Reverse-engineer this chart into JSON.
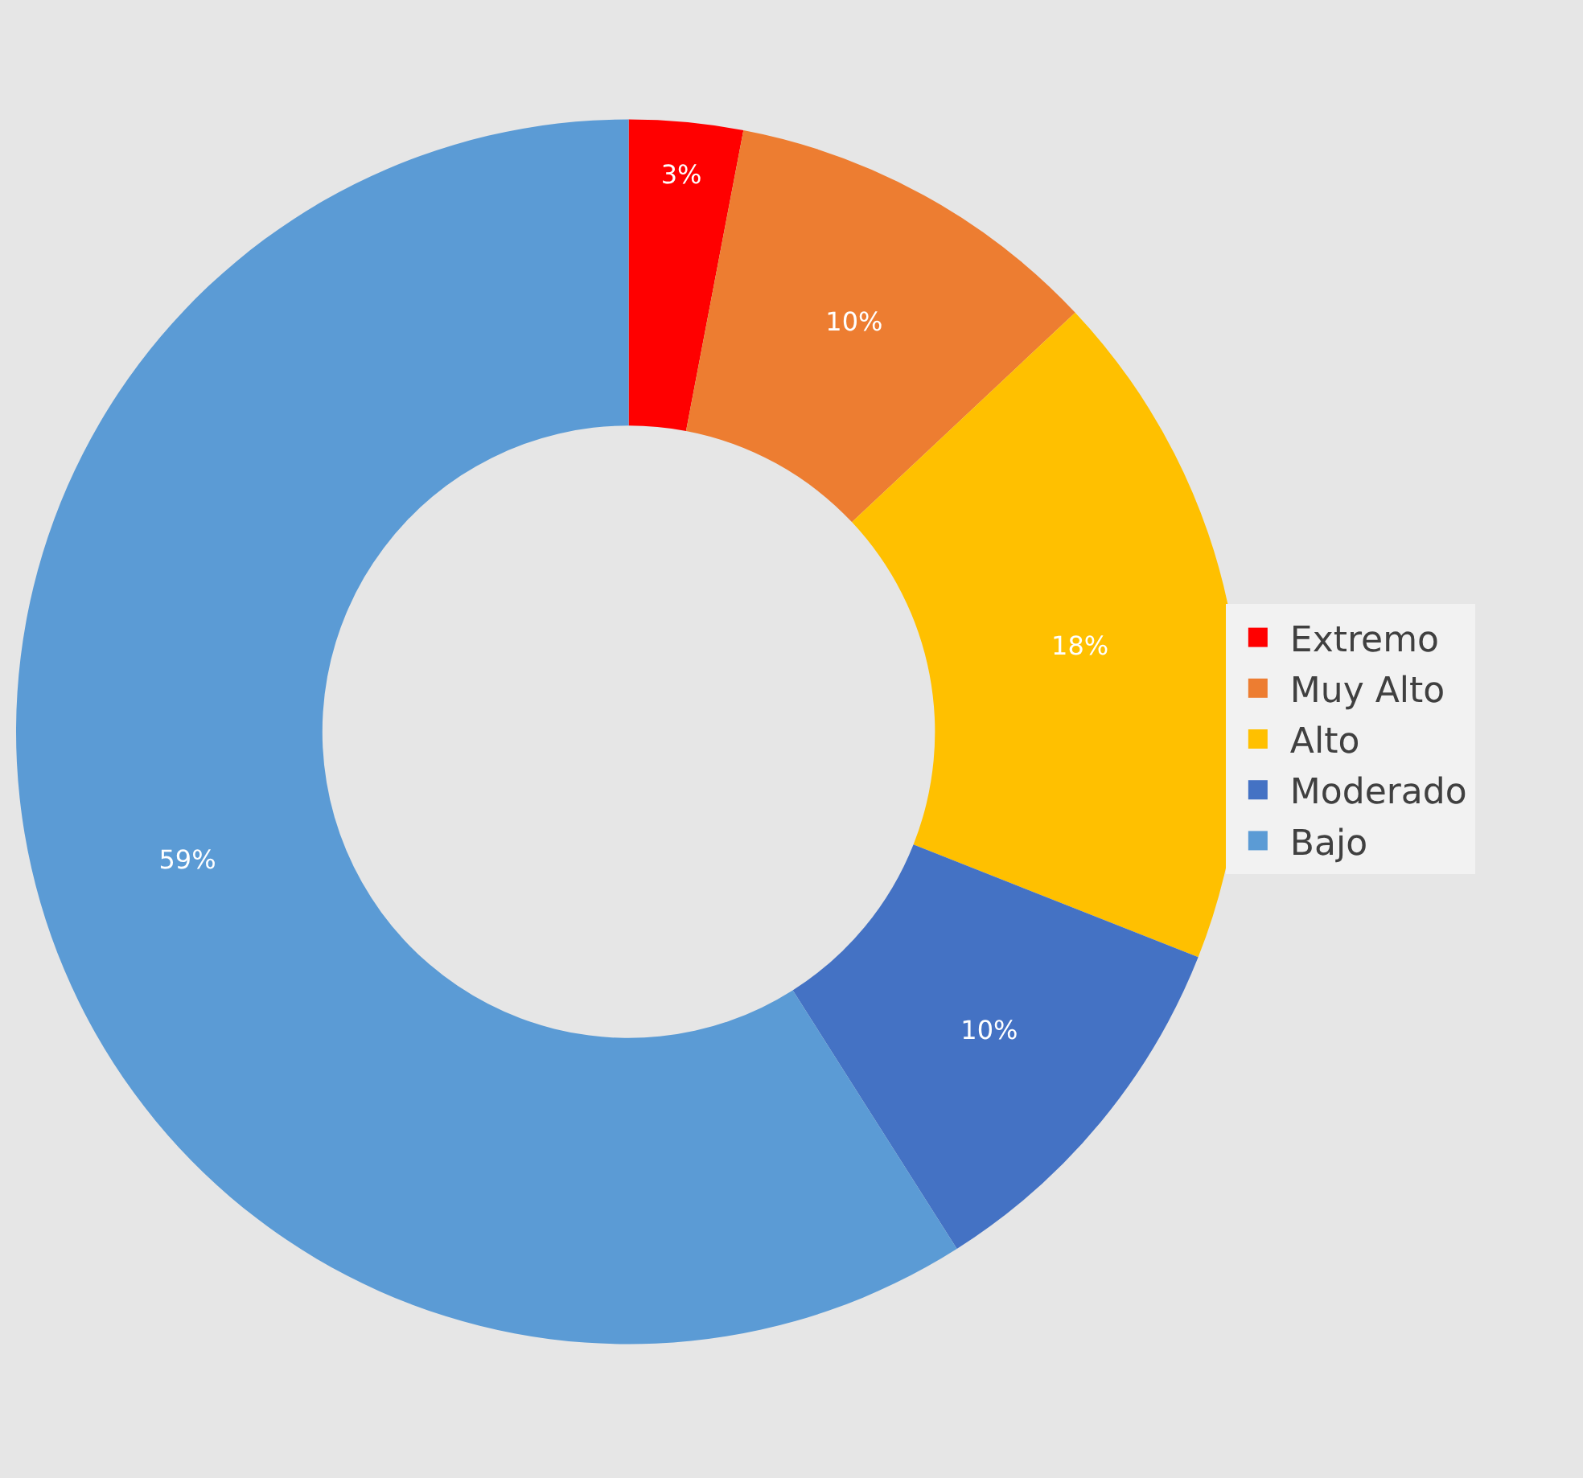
{
  "chart_data": {
    "type": "donut",
    "categories": [
      "Extremo",
      "Muy Alto",
      "Alto",
      "Moderado",
      "Bajo"
    ],
    "values": [
      3,
      10,
      18,
      10,
      59
    ],
    "value_labels": [
      "3%",
      "10%",
      "18%",
      "10%",
      "59%"
    ],
    "colors": [
      "#ff0000",
      "#ed7d31",
      "#ffc000",
      "#4472c4",
      "#5b9bd5"
    ],
    "legend": "right"
  }
}
